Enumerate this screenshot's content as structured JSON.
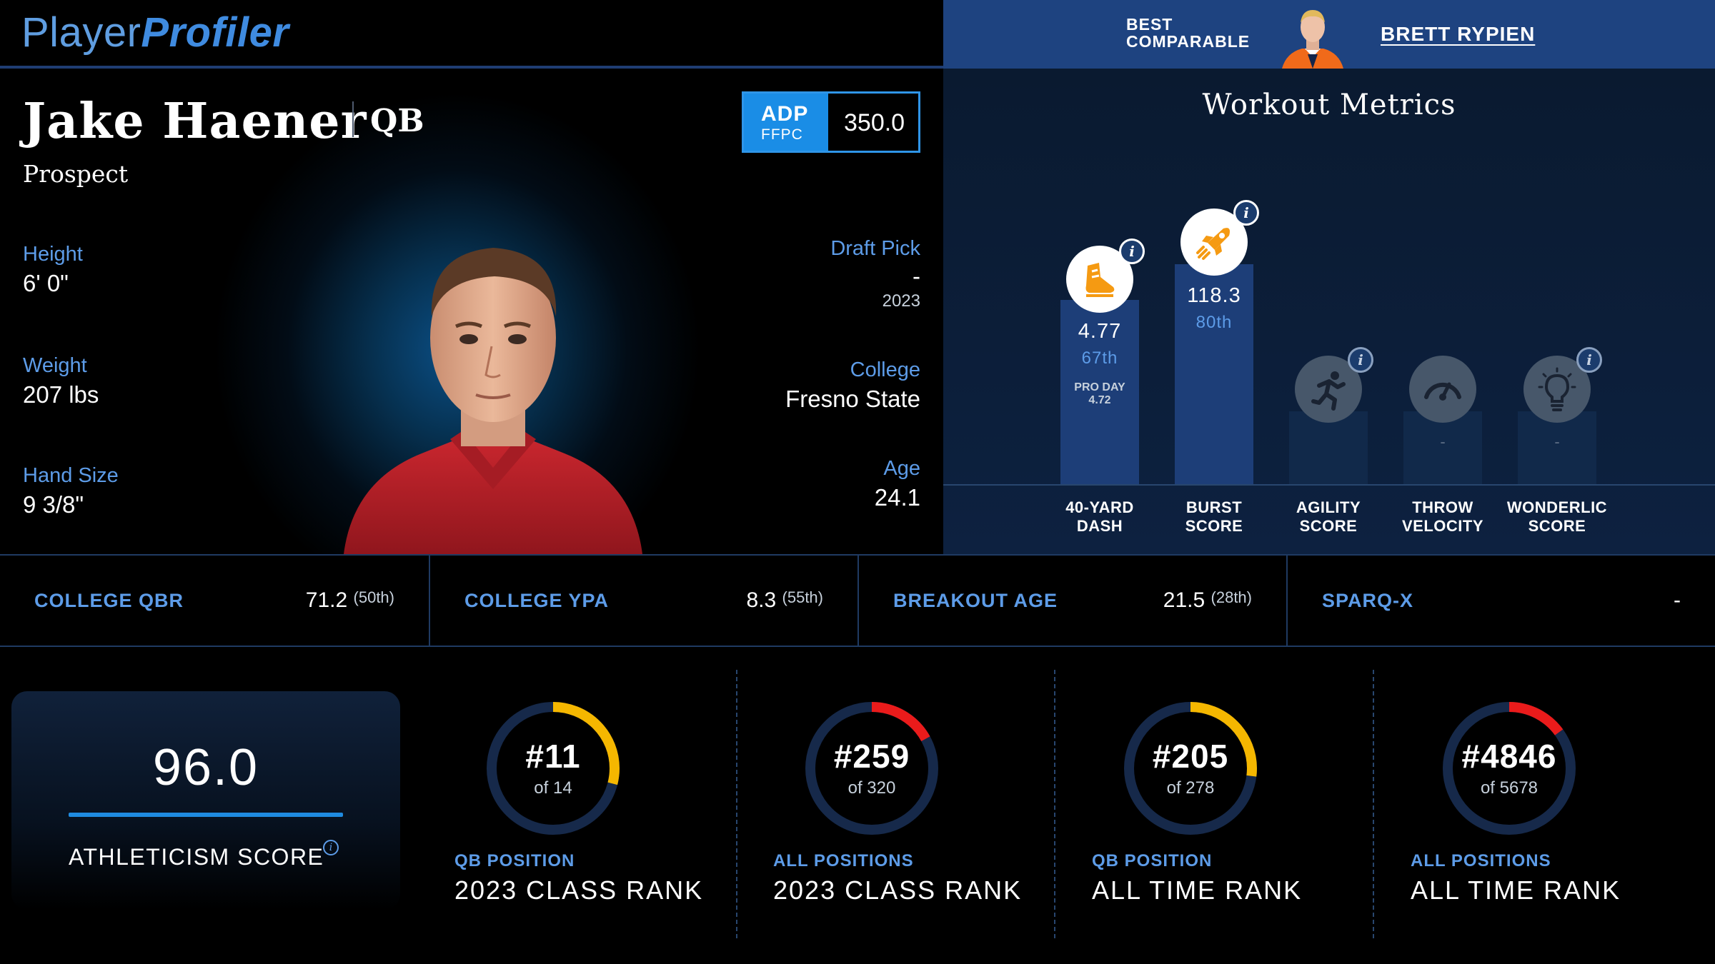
{
  "header": {
    "logo_part1": "Player",
    "logo_part2": "Profiler",
    "comparable_label_line1": "BEST",
    "comparable_label_line2": "COMPARABLE",
    "comparable_name": "BRETT RYPIEN"
  },
  "player": {
    "name": "Jake Haener",
    "position": "QB",
    "status": "Prospect",
    "adp_label": "ADP",
    "adp_source": "FFPC",
    "adp_value": "350.0",
    "height_label": "Height",
    "height": "6' 0\"",
    "weight_label": "Weight",
    "weight": "207 lbs",
    "hand_label": "Hand Size",
    "hand": "9 3/8\"",
    "draft_label": "Draft Pick",
    "draft_pick": "-",
    "draft_year": "2023",
    "college_label": "College",
    "college": "Fresno State",
    "age_label": "Age",
    "age": "24.1"
  },
  "workout": {
    "title": "Workout Metrics",
    "metrics": [
      {
        "label_line1": "40-YARD",
        "label_line2": "DASH",
        "value": "4.77",
        "percentile": "67th",
        "note_line1": "PRO DAY",
        "note_line2": "4.72",
        "icon": "running-shoe-icon",
        "active": true,
        "fill": 0.67
      },
      {
        "label_line1": "BURST",
        "label_line2": "SCORE",
        "value": "118.3",
        "percentile": "80th",
        "icon": "rocket-icon",
        "active": true,
        "fill": 0.8
      },
      {
        "label_line1": "AGILITY",
        "label_line2": "SCORE",
        "value": "-",
        "icon": "runner-icon",
        "active": false
      },
      {
        "label_line1": "THROW",
        "label_line2": "VELOCITY",
        "value": "-",
        "icon": "speedometer-icon",
        "active": false
      },
      {
        "label_line1": "WONDERLIC",
        "label_line2": "SCORE",
        "value": "-",
        "icon": "lightbulb-icon",
        "active": false
      }
    ]
  },
  "stats": [
    {
      "name": "COLLEGE QBR",
      "value": "71.2",
      "percentile": "(50th)"
    },
    {
      "name": "COLLEGE YPA",
      "value": "8.3",
      "percentile": "(55th)"
    },
    {
      "name": "BREAKOUT AGE",
      "value": "21.5",
      "percentile": "(28th)"
    },
    {
      "name": "SPARQ-X",
      "value": "-",
      "percentile": ""
    }
  ],
  "athleticism": {
    "score": "96.0",
    "label": "ATHLETICISM SCORE"
  },
  "ranks": [
    {
      "rank": "#11",
      "of": "of 14",
      "sub": "QB POSITION",
      "title": "2023 CLASS RANK",
      "fill": 0.29,
      "color": "#f5b700"
    },
    {
      "rank": "#259",
      "of": "of 320",
      "sub": "ALL POSITIONS",
      "title": "2023 CLASS RANK",
      "fill": 0.17,
      "color": "#ea1b1b"
    },
    {
      "rank": "#205",
      "of": "of 278",
      "sub": "QB POSITION",
      "title": "ALL TIME RANK",
      "fill": 0.27,
      "color": "#f5b700"
    },
    {
      "rank": "#4846",
      "of": "of 5678",
      "sub": "ALL POSITIONS",
      "title": "ALL TIME RANK",
      "fill": 0.15,
      "color": "#ea1b1b"
    }
  ],
  "colors": {
    "accent": "#3f8be0",
    "label_blue": "#5d9ce8",
    "bar_active": "#1d3e78",
    "ring_track": "#16294a"
  }
}
